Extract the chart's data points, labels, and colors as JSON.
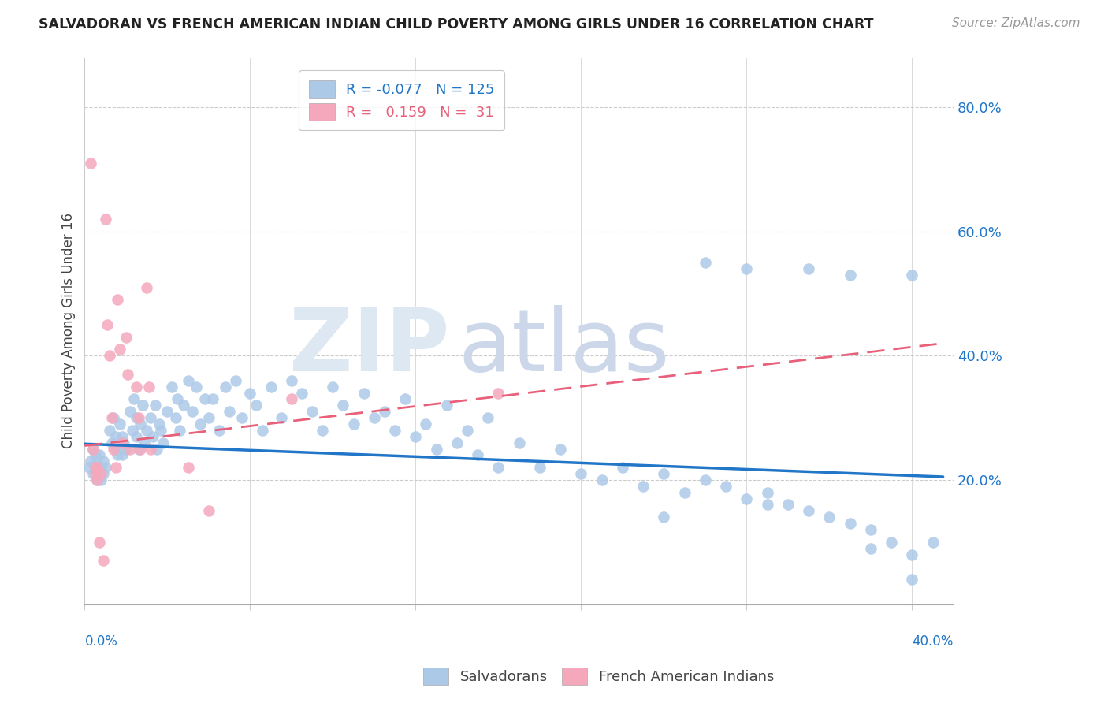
{
  "title": "SALVADORAN VS FRENCH AMERICAN INDIAN CHILD POVERTY AMONG GIRLS UNDER 16 CORRELATION CHART",
  "source": "Source: ZipAtlas.com",
  "ylabel": "Child Poverty Among Girls Under 16",
  "y_ticks": [
    0.0,
    0.2,
    0.4,
    0.6,
    0.8
  ],
  "y_tick_labels": [
    "",
    "20.0%",
    "40.0%",
    "60.0%",
    "80.0%"
  ],
  "xlim": [
    0.0,
    0.42
  ],
  "ylim": [
    0.0,
    0.88
  ],
  "salvadoran_R": -0.077,
  "salvadoran_N": 125,
  "french_indian_R": 0.159,
  "french_indian_N": 31,
  "blue_color": "#adc9e8",
  "pink_color": "#f5a8bc",
  "blue_line_color": "#2176c7",
  "pink_line_color": "#e8607a",
  "blue_trend": [
    -0.077,
    0.259,
    0.0
  ],
  "pink_trend": [
    0.159,
    0.25,
    0.4
  ],
  "salvadoran_x": [
    0.002,
    0.003,
    0.004,
    0.004,
    0.005,
    0.005,
    0.006,
    0.006,
    0.007,
    0.007,
    0.007,
    0.008,
    0.008,
    0.009,
    0.009,
    0.01,
    0.012,
    0.013,
    0.014,
    0.015,
    0.015,
    0.016,
    0.017,
    0.018,
    0.018,
    0.019,
    0.02,
    0.022,
    0.023,
    0.024,
    0.025,
    0.025,
    0.026,
    0.027,
    0.028,
    0.029,
    0.03,
    0.032,
    0.033,
    0.034,
    0.035,
    0.036,
    0.037,
    0.038,
    0.04,
    0.042,
    0.044,
    0.045,
    0.046,
    0.048,
    0.05,
    0.052,
    0.054,
    0.056,
    0.058,
    0.06,
    0.062,
    0.065,
    0.068,
    0.07,
    0.073,
    0.076,
    0.08,
    0.083,
    0.086,
    0.09,
    0.095,
    0.1,
    0.105,
    0.11,
    0.115,
    0.12,
    0.125,
    0.13,
    0.135,
    0.14,
    0.145,
    0.15,
    0.155,
    0.16,
    0.165,
    0.17,
    0.175,
    0.18,
    0.185,
    0.19,
    0.195,
    0.2,
    0.21,
    0.22,
    0.23,
    0.24,
    0.25,
    0.26,
    0.27,
    0.28,
    0.29,
    0.3,
    0.31,
    0.32,
    0.33,
    0.34,
    0.35,
    0.36,
    0.37,
    0.38,
    0.39,
    0.4,
    0.3,
    0.32,
    0.35,
    0.37,
    0.4,
    0.28,
    0.33,
    0.38,
    0.4,
    0.41
  ],
  "salvadoran_y": [
    0.22,
    0.23,
    0.21,
    0.25,
    0.22,
    0.24,
    0.2,
    0.23,
    0.21,
    0.22,
    0.24,
    0.2,
    0.22,
    0.21,
    0.23,
    0.22,
    0.28,
    0.26,
    0.3,
    0.25,
    0.27,
    0.24,
    0.29,
    0.27,
    0.24,
    0.26,
    0.25,
    0.31,
    0.28,
    0.33,
    0.27,
    0.3,
    0.25,
    0.29,
    0.32,
    0.26,
    0.28,
    0.3,
    0.27,
    0.32,
    0.25,
    0.29,
    0.28,
    0.26,
    0.31,
    0.35,
    0.3,
    0.33,
    0.28,
    0.32,
    0.36,
    0.31,
    0.35,
    0.29,
    0.33,
    0.3,
    0.33,
    0.28,
    0.35,
    0.31,
    0.36,
    0.3,
    0.34,
    0.32,
    0.28,
    0.35,
    0.3,
    0.36,
    0.34,
    0.31,
    0.28,
    0.35,
    0.32,
    0.29,
    0.34,
    0.3,
    0.31,
    0.28,
    0.33,
    0.27,
    0.29,
    0.25,
    0.32,
    0.26,
    0.28,
    0.24,
    0.3,
    0.22,
    0.26,
    0.22,
    0.25,
    0.21,
    0.2,
    0.22,
    0.19,
    0.21,
    0.18,
    0.2,
    0.19,
    0.17,
    0.18,
    0.16,
    0.15,
    0.14,
    0.13,
    0.12,
    0.1,
    0.08,
    0.55,
    0.54,
    0.54,
    0.53,
    0.53,
    0.14,
    0.16,
    0.09,
    0.04,
    0.1
  ],
  "french_x": [
    0.003,
    0.004,
    0.005,
    0.005,
    0.006,
    0.006,
    0.007,
    0.008,
    0.009,
    0.01,
    0.011,
    0.012,
    0.013,
    0.014,
    0.015,
    0.016,
    0.017,
    0.018,
    0.02,
    0.021,
    0.022,
    0.025,
    0.026,
    0.027,
    0.03,
    0.031,
    0.032,
    0.05,
    0.06,
    0.1,
    0.2
  ],
  "french_y": [
    0.71,
    0.25,
    0.22,
    0.21,
    0.22,
    0.2,
    0.1,
    0.21,
    0.07,
    0.62,
    0.45,
    0.4,
    0.3,
    0.25,
    0.22,
    0.49,
    0.41,
    0.26,
    0.43,
    0.37,
    0.25,
    0.35,
    0.3,
    0.25,
    0.51,
    0.35,
    0.25,
    0.22,
    0.15,
    0.33,
    0.34
  ]
}
